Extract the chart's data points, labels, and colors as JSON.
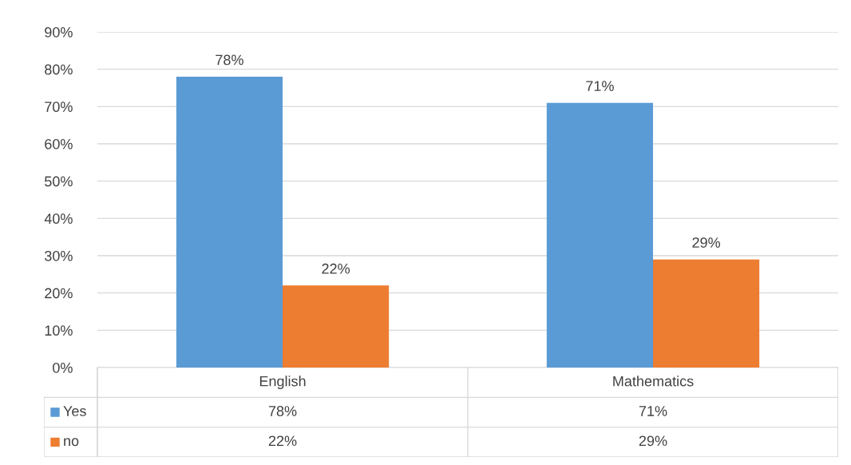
{
  "chart_data": {
    "type": "bar",
    "categories": [
      "English",
      "Mathematics"
    ],
    "series": [
      {
        "name": "Yes",
        "color": "#5b9bd5",
        "values": [
          78,
          71
        ],
        "value_labels": [
          "78%",
          "71%"
        ]
      },
      {
        "name": "no",
        "color": "#ed7d31",
        "values": [
          22,
          29
        ],
        "value_labels": [
          "22%",
          "29%"
        ]
      }
    ],
    "ylim": [
      0,
      90
    ],
    "yticks": [
      {
        "value": 0,
        "label": "0%"
      },
      {
        "value": 10,
        "label": "10%"
      },
      {
        "value": 20,
        "label": "20%"
      },
      {
        "value": 30,
        "label": "30%"
      },
      {
        "value": 40,
        "label": "40%"
      },
      {
        "value": 50,
        "label": "50%"
      },
      {
        "value": 60,
        "label": "60%"
      },
      {
        "value": 70,
        "label": "70%"
      },
      {
        "value": 80,
        "label": "80%"
      },
      {
        "value": 90,
        "label": "90%"
      }
    ],
    "grid": "y",
    "legend": "bottom"
  }
}
